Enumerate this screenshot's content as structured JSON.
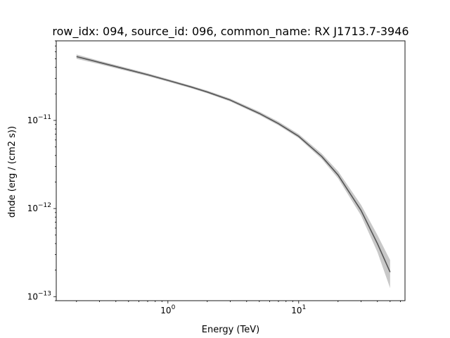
{
  "chart_data": {
    "type": "line",
    "title": "row_idx: 094, source_id: 096, common_name: RX J1713.7-3946",
    "xlabel": "Energy (TeV)",
    "ylabel": "dnde (erg / (cm2 s))",
    "xscale": "log",
    "yscale": "log",
    "xlim": [
      0.14,
      65
    ],
    "ylim": [
      9e-14,
      8e-11
    ],
    "grid": false,
    "legend": "none",
    "x_tick_labels": [
      {
        "value": 1,
        "base": "10",
        "exp": "0"
      },
      {
        "value": 10,
        "base": "10",
        "exp": "1"
      }
    ],
    "y_tick_labels": [
      {
        "value": 1e-13,
        "base": "10",
        "exp": "−13"
      },
      {
        "value": 1e-12,
        "base": "10",
        "exp": "−12"
      },
      {
        "value": 1e-11,
        "base": "10",
        "exp": "−11"
      }
    ],
    "series": [
      {
        "color": "#555555",
        "band_color": "#c8c8c8",
        "points": [
          {
            "x": 0.2,
            "y": 5.3e-11,
            "lo": 5e-11,
            "hi": 5.6e-11
          },
          {
            "x": 0.3,
            "y": 4.55e-11,
            "lo": 4.35e-11,
            "hi": 4.75e-11
          },
          {
            "x": 0.5,
            "y": 3.75e-11,
            "lo": 3.6e-11,
            "hi": 3.9e-11
          },
          {
            "x": 0.7,
            "y": 3.3e-11,
            "lo": 3.18e-11,
            "hi": 3.42e-11
          },
          {
            "x": 1.0,
            "y": 2.85e-11,
            "lo": 2.75e-11,
            "hi": 2.95e-11
          },
          {
            "x": 1.5,
            "y": 2.4e-11,
            "lo": 2.32e-11,
            "hi": 2.48e-11
          },
          {
            "x": 2.0,
            "y": 2.1e-11,
            "lo": 2.03e-11,
            "hi": 2.18e-11
          },
          {
            "x": 3.0,
            "y": 1.7e-11,
            "lo": 1.64e-11,
            "hi": 1.77e-11
          },
          {
            "x": 5.0,
            "y": 1.2e-11,
            "lo": 1.15e-11,
            "hi": 1.26e-11
          },
          {
            "x": 7.0,
            "y": 9.2e-12,
            "lo": 8.8e-12,
            "hi": 9.7e-12
          },
          {
            "x": 10.0,
            "y": 6.6e-12,
            "lo": 6.3e-12,
            "hi": 7e-12
          },
          {
            "x": 15.0,
            "y": 3.9e-12,
            "lo": 3.65e-12,
            "hi": 4.2e-12
          },
          {
            "x": 20.0,
            "y": 2.4e-12,
            "lo": 2.2e-12,
            "hi": 2.65e-12
          },
          {
            "x": 30.0,
            "y": 9.5e-13,
            "lo": 8.3e-13,
            "hi": 1.1e-12
          },
          {
            "x": 40.0,
            "y": 4e-13,
            "lo": 3.2e-13,
            "hi": 5e-13
          },
          {
            "x": 50.0,
            "y": 1.9e-13,
            "lo": 1.25e-13,
            "hi": 2.6e-13
          }
        ]
      }
    ]
  }
}
